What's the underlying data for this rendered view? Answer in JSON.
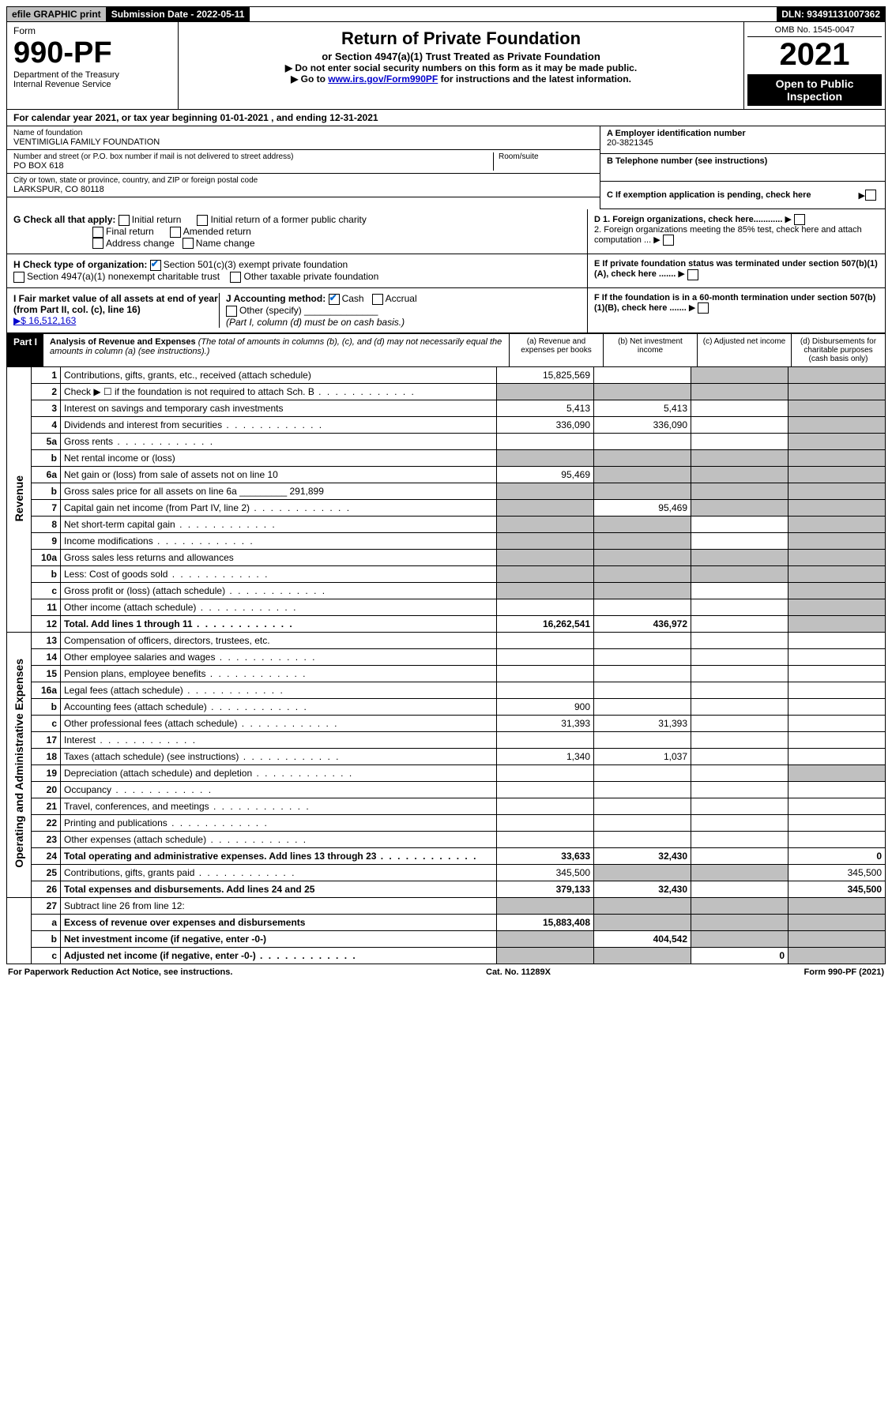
{
  "top": {
    "efile": "efile GRAPHIC print",
    "sub_date_label": "Submission Date - 2022-05-11",
    "dln": "DLN: 93491131007362"
  },
  "header": {
    "form_label": "Form",
    "form_no": "990-PF",
    "dept": "Department of the Treasury",
    "irs": "Internal Revenue Service",
    "title": "Return of Private Foundation",
    "subtitle": "or Section 4947(a)(1) Trust Treated as Private Foundation",
    "note1": "▶ Do not enter social security numbers on this form as it may be made public.",
    "note2_pre": "▶ Go to ",
    "note2_link": "www.irs.gov/Form990PF",
    "note2_post": " for instructions and the latest information.",
    "omb": "OMB No. 1545-0047",
    "year": "2021",
    "open": "Open to Public Inspection"
  },
  "calyear": "For calendar year 2021, or tax year beginning 01-01-2021             , and ending 12-31-2021",
  "entity": {
    "name_label": "Name of foundation",
    "name": "VENTIMIGLIA FAMILY FOUNDATION",
    "addr_label": "Number and street (or P.O. box number if mail is not delivered to street address)",
    "addr": "PO BOX 618",
    "room_label": "Room/suite",
    "city_label": "City or town, state or province, country, and ZIP or foreign postal code",
    "city": "LARKSPUR, CO  80118",
    "a_label": "A Employer identification number",
    "a_val": "20-3821345",
    "b_label": "B Telephone number (see instructions)",
    "c_label": "C If exemption application is pending, check here"
  },
  "checks": {
    "g_label": "G Check all that apply:",
    "g_opts": [
      "Initial return",
      "Final return",
      "Address change",
      "Initial return of a former public charity",
      "Amended return",
      "Name change"
    ],
    "h_label": "H Check type of organization:",
    "h1": "Section 501(c)(3) exempt private foundation",
    "h2": "Section 4947(a)(1) nonexempt charitable trust",
    "h3": "Other taxable private foundation",
    "i_label": "I Fair market value of all assets at end of year (from Part II, col. (c), line 16)",
    "i_val": "▶$  16,512,163",
    "j_label": "J Accounting method:",
    "j_cash": "Cash",
    "j_accrual": "Accrual",
    "j_other": "Other (specify)",
    "j_note": "(Part I, column (d) must be on cash basis.)",
    "d1": "D 1. Foreign organizations, check here............",
    "d2": "2. Foreign organizations meeting the 85% test, check here and attach computation ...",
    "e": "E  If private foundation status was terminated under section 507(b)(1)(A), check here .......",
    "f": "F  If the foundation is in a 60-month termination under section 507(b)(1)(B), check here ......."
  },
  "part1": {
    "label": "Part I",
    "title": "Analysis of Revenue and Expenses",
    "title_note": " (The total of amounts in columns (b), (c), and (d) may not necessarily equal the amounts in column (a) (see instructions).)",
    "cols": {
      "a": "(a) Revenue and expenses per books",
      "b": "(b) Net investment income",
      "c": "(c) Adjusted net income",
      "d": "(d) Disbursements for charitable purposes (cash basis only)"
    }
  },
  "side": {
    "rev": "Revenue",
    "exp": "Operating and Administrative Expenses"
  },
  "rows": [
    {
      "n": "1",
      "d": "Contributions, gifts, grants, etc., received (attach schedule)",
      "a": "15,825,569",
      "b": "",
      "c": "g",
      "dcol": "g"
    },
    {
      "n": "2",
      "d": "Check ▶ ☐ if the foundation is not required to attach Sch. B",
      "a": "g",
      "b": "g",
      "c": "g",
      "dcol": "g",
      "dots": true
    },
    {
      "n": "3",
      "d": "Interest on savings and temporary cash investments",
      "a": "5,413",
      "b": "5,413",
      "c": "",
      "dcol": "g"
    },
    {
      "n": "4",
      "d": "Dividends and interest from securities",
      "a": "336,090",
      "b": "336,090",
      "c": "",
      "dcol": "g",
      "dots": true
    },
    {
      "n": "5a",
      "d": "Gross rents",
      "a": "",
      "b": "",
      "c": "",
      "dcol": "g",
      "dots": true
    },
    {
      "n": "b",
      "d": "Net rental income or (loss)",
      "a": "g",
      "b": "g",
      "c": "g",
      "dcol": "g",
      "under": true
    },
    {
      "n": "6a",
      "d": "Net gain or (loss) from sale of assets not on line 10",
      "a": "95,469",
      "b": "g",
      "c": "g",
      "dcol": "g"
    },
    {
      "n": "b",
      "d": "Gross sales price for all assets on line 6a _________ 291,899",
      "a": "g",
      "b": "g",
      "c": "g",
      "dcol": "g"
    },
    {
      "n": "7",
      "d": "Capital gain net income (from Part IV, line 2)",
      "a": "g",
      "b": "95,469",
      "c": "g",
      "dcol": "g",
      "dots": true
    },
    {
      "n": "8",
      "d": "Net short-term capital gain",
      "a": "g",
      "b": "g",
      "c": "",
      "dcol": "g",
      "dots": true
    },
    {
      "n": "9",
      "d": "Income modifications",
      "a": "g",
      "b": "g",
      "c": "",
      "dcol": "g",
      "dots": true
    },
    {
      "n": "10a",
      "d": "Gross sales less returns and allowances",
      "a": "g",
      "b": "g",
      "c": "g",
      "dcol": "g",
      "under": true
    },
    {
      "n": "b",
      "d": "Less: Cost of goods sold",
      "a": "g",
      "b": "g",
      "c": "g",
      "dcol": "g",
      "dots": true,
      "under": true
    },
    {
      "n": "c",
      "d": "Gross profit or (loss) (attach schedule)",
      "a": "g",
      "b": "g",
      "c": "",
      "dcol": "g",
      "dots": true
    },
    {
      "n": "11",
      "d": "Other income (attach schedule)",
      "a": "",
      "b": "",
      "c": "",
      "dcol": "g",
      "dots": true
    },
    {
      "n": "12",
      "d": "Total. Add lines 1 through 11",
      "a": "16,262,541",
      "b": "436,972",
      "c": "",
      "dcol": "g",
      "bold": true,
      "dots": true
    }
  ],
  "rows2": [
    {
      "n": "13",
      "d": "Compensation of officers, directors, trustees, etc.",
      "a": "",
      "b": "",
      "c": "",
      "dcol": ""
    },
    {
      "n": "14",
      "d": "Other employee salaries and wages",
      "a": "",
      "b": "",
      "c": "",
      "dcol": "",
      "dots": true
    },
    {
      "n": "15",
      "d": "Pension plans, employee benefits",
      "a": "",
      "b": "",
      "c": "",
      "dcol": "",
      "dots": true
    },
    {
      "n": "16a",
      "d": "Legal fees (attach schedule)",
      "a": "",
      "b": "",
      "c": "",
      "dcol": "",
      "dots": true
    },
    {
      "n": "b",
      "d": "Accounting fees (attach schedule)",
      "a": "900",
      "b": "",
      "c": "",
      "dcol": "",
      "dots": true
    },
    {
      "n": "c",
      "d": "Other professional fees (attach schedule)",
      "a": "31,393",
      "b": "31,393",
      "c": "",
      "dcol": "",
      "dots": true
    },
    {
      "n": "17",
      "d": "Interest",
      "a": "",
      "b": "",
      "c": "",
      "dcol": "",
      "dots": true
    },
    {
      "n": "18",
      "d": "Taxes (attach schedule) (see instructions)",
      "a": "1,340",
      "b": "1,037",
      "c": "",
      "dcol": "",
      "dots": true
    },
    {
      "n": "19",
      "d": "Depreciation (attach schedule) and depletion",
      "a": "",
      "b": "",
      "c": "",
      "dcol": "g",
      "dots": true
    },
    {
      "n": "20",
      "d": "Occupancy",
      "a": "",
      "b": "",
      "c": "",
      "dcol": "",
      "dots": true
    },
    {
      "n": "21",
      "d": "Travel, conferences, and meetings",
      "a": "",
      "b": "",
      "c": "",
      "dcol": "",
      "dots": true
    },
    {
      "n": "22",
      "d": "Printing and publications",
      "a": "",
      "b": "",
      "c": "",
      "dcol": "",
      "dots": true
    },
    {
      "n": "23",
      "d": "Other expenses (attach schedule)",
      "a": "",
      "b": "",
      "c": "",
      "dcol": "",
      "dots": true
    },
    {
      "n": "24",
      "d": "Total operating and administrative expenses. Add lines 13 through 23",
      "a": "33,633",
      "b": "32,430",
      "c": "",
      "dcol": "0",
      "bold": true,
      "dots": true
    },
    {
      "n": "25",
      "d": "Contributions, gifts, grants paid",
      "a": "345,500",
      "b": "g",
      "c": "g",
      "dcol": "345,500",
      "dots": true
    },
    {
      "n": "26",
      "d": "Total expenses and disbursements. Add lines 24 and 25",
      "a": "379,133",
      "b": "32,430",
      "c": "",
      "dcol": "345,500",
      "bold": true
    }
  ],
  "rows3": [
    {
      "n": "27",
      "d": "Subtract line 26 from line 12:",
      "a": "g",
      "b": "g",
      "c": "g",
      "dcol": "g"
    },
    {
      "n": "a",
      "d": "Excess of revenue over expenses and disbursements",
      "a": "15,883,408",
      "b": "g",
      "c": "g",
      "dcol": "g",
      "bold": true
    },
    {
      "n": "b",
      "d": "Net investment income (if negative, enter -0-)",
      "a": "g",
      "b": "404,542",
      "c": "g",
      "dcol": "g",
      "bold": true
    },
    {
      "n": "c",
      "d": "Adjusted net income (if negative, enter -0-)",
      "a": "g",
      "b": "g",
      "c": "0",
      "dcol": "g",
      "bold": true,
      "dots": true
    }
  ],
  "footer": {
    "left": "For Paperwork Reduction Act Notice, see instructions.",
    "mid": "Cat. No. 11289X",
    "right": "Form 990-PF (2021)"
  }
}
